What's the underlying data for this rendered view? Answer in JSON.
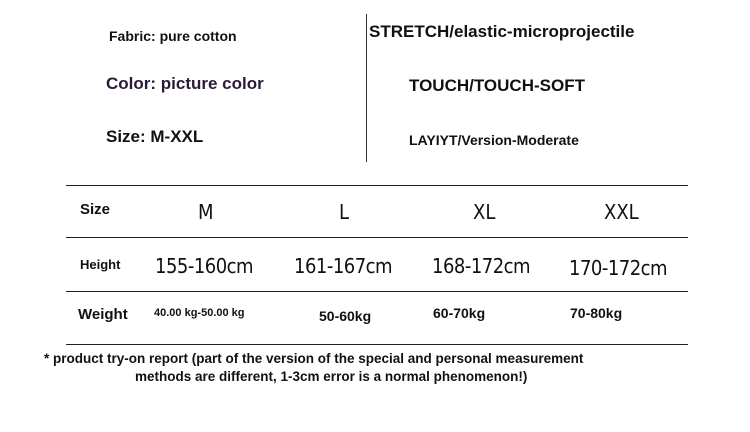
{
  "specs_left": {
    "fabric": "Fabric: pure cotton",
    "color": "Color: picture color",
    "size": "Size: M-XXL"
  },
  "specs_right": {
    "stretch": "STRETCH/elastic-microprojectile",
    "touch": "TOUCH/TOUCH-SOFT",
    "layout": "LAYIYT/Version-Moderate"
  },
  "colors": {
    "color_label": "#2a1a3a",
    "text": "#111111"
  },
  "table": {
    "rows": [
      {
        "label": "Size",
        "cells": [
          "M",
          "L",
          "XL",
          "XXL"
        ]
      },
      {
        "label": "Height",
        "cells": [
          "155-160cm",
          "161-167cm",
          "168-172cm",
          "170-172cm"
        ]
      },
      {
        "label": "Weight",
        "cells": [
          "40.00 kg-50.00 kg",
          "50-60kg",
          "60-70kg",
          "70-80kg"
        ]
      }
    ]
  },
  "note": {
    "line1": "* product try-on report (part of the version of the special and personal measurement",
    "line2": "methods are different, 1-3cm error is a normal phenomenon!)"
  }
}
